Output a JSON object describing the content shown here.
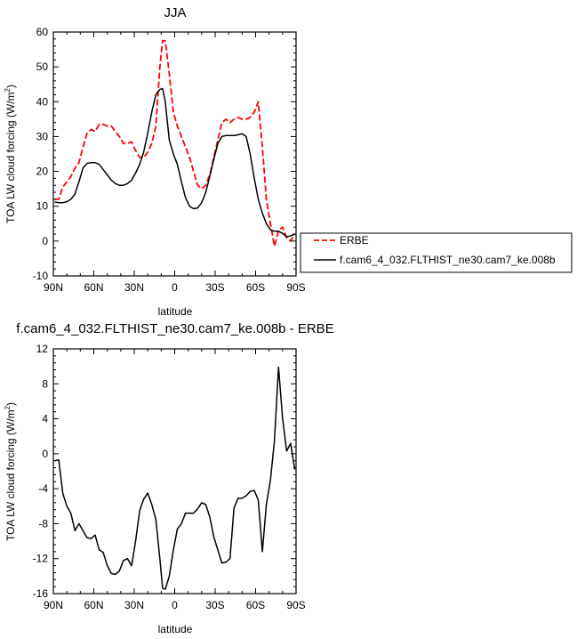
{
  "chart_data": [
    {
      "type": "line",
      "title": "JJA",
      "xlabel": "latitude",
      "ylabel": "TOA LW cloud forcing (W/m²)",
      "ylabel_parts": {
        "main": "TOA LW cloud forcing (W/m",
        "sup": "2",
        "end": ")"
      },
      "x_tick_labels": [
        "90N",
        "60N",
        "30N",
        "0",
        "30S",
        "60S",
        "90S"
      ],
      "x_tick_values": [
        90,
        60,
        30,
        0,
        -30,
        -60,
        -90
      ],
      "xlim": [
        90,
        -90
      ],
      "ylim": [
        -10,
        60
      ],
      "y_ticks": [
        -10,
        0,
        10,
        20,
        30,
        40,
        50,
        60
      ],
      "grid": false,
      "legend_position": "right",
      "series": [
        {
          "name": "ERBE",
          "color": "#ff0000",
          "dash": "dashed",
          "x": [
            89,
            86,
            83,
            80,
            77,
            74,
            71,
            68,
            65,
            62,
            59,
            56,
            53,
            50,
            47,
            44,
            41,
            38,
            35,
            32,
            29,
            26,
            23,
            20,
            17,
            14,
            11,
            9,
            7,
            4,
            1,
            -2,
            -5,
            -8,
            -11,
            -14,
            -17,
            -20,
            -23,
            -26,
            -29,
            -32,
            -35,
            -38,
            -41,
            -44,
            -47,
            -50,
            -53,
            -56,
            -59,
            -62,
            -65,
            -68,
            -71,
            -74,
            -77,
            -80,
            -83,
            -86,
            -89
          ],
          "values": [
            12,
            12,
            15.5,
            17,
            18.5,
            21,
            22.5,
            27,
            31,
            32,
            31.5,
            33.5,
            33.5,
            33,
            33,
            31.5,
            30,
            28,
            28,
            28.5,
            26,
            24,
            24,
            25.5,
            28,
            33,
            50,
            57.5,
            57.5,
            48,
            37,
            33,
            30,
            27,
            24,
            20,
            16,
            15,
            16,
            19,
            24,
            29,
            34,
            35,
            34,
            35,
            35.5,
            35,
            35,
            35.5,
            37,
            40,
            27,
            12,
            5,
            -1.5,
            3,
            4,
            1,
            0,
            2
          ]
        },
        {
          "name": "f.cam6_4_032.FLTHIST_ne30.cam7_ke.008b",
          "color": "#000000",
          "dash": "solid",
          "x": [
            89,
            86,
            83,
            80,
            77,
            74,
            71,
            68,
            65,
            62,
            59,
            56,
            53,
            50,
            47,
            44,
            41,
            38,
            35,
            32,
            29,
            26,
            23,
            20,
            17,
            14,
            11,
            9,
            7,
            4,
            1,
            -2,
            -5,
            -8,
            -11,
            -14,
            -17,
            -20,
            -23,
            -26,
            -29,
            -32,
            -35,
            -38,
            -41,
            -44,
            -47,
            -50,
            -53,
            -56,
            -59,
            -62,
            -65,
            -68,
            -71,
            -74,
            -77,
            -80,
            -83,
            -86,
            -89
          ],
          "values": [
            11.2,
            11,
            11,
            11.3,
            12,
            13.5,
            17,
            21,
            22.3,
            22.5,
            22.5,
            22,
            20.5,
            19,
            17.5,
            16.5,
            16,
            16,
            16.5,
            17.5,
            19.5,
            22,
            25.5,
            31,
            37,
            42,
            43.5,
            43.8,
            40,
            29,
            25,
            22,
            17,
            12.5,
            10,
            9.3,
            9.5,
            11,
            14,
            18.5,
            23.5,
            28,
            30,
            30.3,
            30.3,
            30.3,
            30.5,
            30.8,
            30,
            25,
            18,
            12,
            8,
            5,
            3.2,
            2.8,
            2.8,
            2.2,
            1.2,
            1.5,
            2
          ]
        }
      ]
    },
    {
      "type": "line",
      "title": "f.cam6_4_032.FLTHIST_ne30.cam7_ke.008b - ERBE",
      "xlabel": "latitude",
      "ylabel": "TOA LW cloud forcing (W/m²)",
      "ylabel_parts": {
        "main": "TOA LW cloud forcing (W/m",
        "sup": "2",
        "end": ")"
      },
      "x_tick_labels": [
        "90N",
        "60N",
        "30N",
        "0",
        "30S",
        "60S",
        "90S"
      ],
      "x_tick_values": [
        90,
        60,
        30,
        0,
        -30,
        -60,
        -90
      ],
      "xlim": [
        90,
        -90
      ],
      "ylim": [
        -16,
        12
      ],
      "y_ticks": [
        -16,
        -12,
        -8,
        -4,
        0,
        4,
        8,
        12
      ],
      "grid": false,
      "series": [
        {
          "name": "",
          "color": "#000000",
          "dash": "solid",
          "x": [
            89,
            86,
            83,
            80,
            77,
            74,
            71,
            68,
            65,
            62,
            59,
            56,
            53,
            50,
            47,
            44,
            41,
            38,
            35,
            32,
            29,
            26,
            23,
            20,
            17,
            14,
            11,
            9,
            7,
            4,
            1,
            -2,
            -5,
            -8,
            -11,
            -14,
            -17,
            -20,
            -23,
            -26,
            -29,
            -32,
            -35,
            -38,
            -41,
            -44,
            -47,
            -50,
            -53,
            -56,
            -59,
            -62,
            -65,
            -68,
            -71,
            -74,
            -77,
            -80,
            -83,
            -86,
            -89
          ],
          "values": [
            -0.8,
            -0.7,
            -4.5,
            -6,
            -6.8,
            -8.8,
            -8,
            -8.8,
            -9.6,
            -9.7,
            -9.3,
            -11,
            -11.3,
            -12.8,
            -13.7,
            -13.8,
            -13.4,
            -12.2,
            -12,
            -12.8,
            -10,
            -6.5,
            -5.2,
            -4.5,
            -5.8,
            -7.5,
            -12,
            -15.4,
            -15.5,
            -14,
            -11,
            -8.6,
            -8,
            -6.8,
            -6.8,
            -6.8,
            -6.3,
            -5.6,
            -5.8,
            -7.2,
            -9.5,
            -11,
            -12.5,
            -12.4,
            -12,
            -6.2,
            -5.1,
            -5.1,
            -4.8,
            -4.3,
            -4.2,
            -5.3,
            -11.2,
            -5.8,
            -3,
            1.5,
            9.9,
            4.1,
            0.3,
            1.2,
            -1.8
          ]
        }
      ]
    }
  ]
}
